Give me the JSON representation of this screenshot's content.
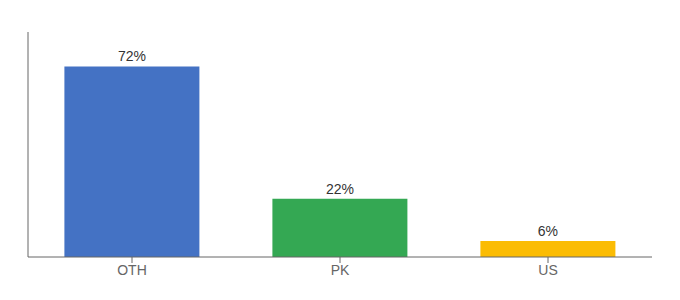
{
  "chart_data": {
    "type": "bar",
    "categories": [
      "OTH",
      "PK",
      "US"
    ],
    "values": [
      72,
      22,
      6
    ],
    "value_labels": [
      "72%",
      "22%",
      "6%"
    ],
    "data_labels": true,
    "colors": [
      "#4472C4",
      "#34A853",
      "#FBBC04"
    ],
    "ylim": [
      0,
      85
    ],
    "tick_labels": "x",
    "grid": false
  }
}
